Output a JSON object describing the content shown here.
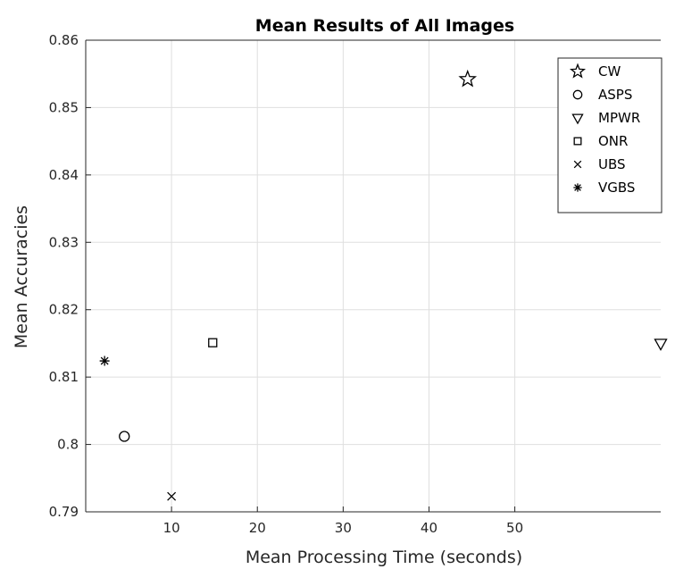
{
  "chart_data": {
    "type": "scatter",
    "title": "Mean Results of All Images",
    "xlabel": "Mean Processing Time (seconds)",
    "ylabel": "Mean Accuracies",
    "xlim": [
      0,
      67
    ],
    "ylim": [
      0.79,
      0.86
    ],
    "xticks": [
      10,
      20,
      30,
      40,
      50
    ],
    "yticks": [
      0.79,
      0.8,
      0.81,
      0.82,
      0.83,
      0.84,
      0.85,
      0.86
    ],
    "xtick_labels": [
      "10",
      "20",
      "30",
      "40",
      "50"
    ],
    "ytick_labels": [
      "0.79",
      "0.8",
      "0.81",
      "0.82",
      "0.83",
      "0.84",
      "0.85",
      "0.86"
    ],
    "grid": true,
    "legend_position": "top-right",
    "series": [
      {
        "name": "CW",
        "marker": "star",
        "x": 44.5,
        "y": 0.8542
      },
      {
        "name": "ASPS",
        "marker": "circle",
        "x": 4.5,
        "y": 0.8012
      },
      {
        "name": "MPWR",
        "marker": "triangle-down",
        "x": 67,
        "y": 0.815
      },
      {
        "name": "ONR",
        "marker": "square",
        "x": 14.8,
        "y": 0.8151
      },
      {
        "name": "UBS",
        "marker": "x",
        "x": 10,
        "y": 0.7923
      },
      {
        "name": "VGBS",
        "marker": "asterisk",
        "x": 2.2,
        "y": 0.8124
      }
    ],
    "color": "#000000"
  }
}
